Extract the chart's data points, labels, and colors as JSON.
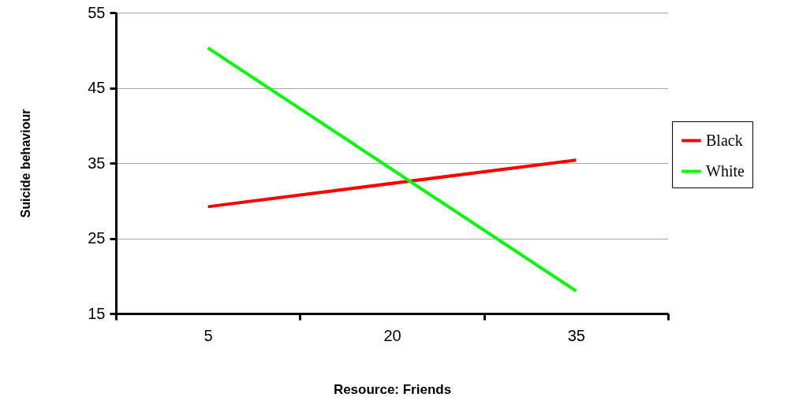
{
  "chart_data": {
    "type": "line",
    "xlabel": "Resource: Friends",
    "ylabel": "Suicide behaviour",
    "categories": [
      "5",
      "20",
      "35"
    ],
    "series": [
      {
        "name": "Black",
        "color": "#ff0000",
        "values": [
          29.2,
          null,
          35.4
        ]
      },
      {
        "name": "White",
        "color": "#00ff00",
        "values": [
          50.3,
          null,
          18.0
        ]
      }
    ],
    "ylim": [
      15,
      55
    ],
    "yticks": [
      15,
      25,
      35,
      45,
      55
    ],
    "grid": "y",
    "legend": "right"
  }
}
